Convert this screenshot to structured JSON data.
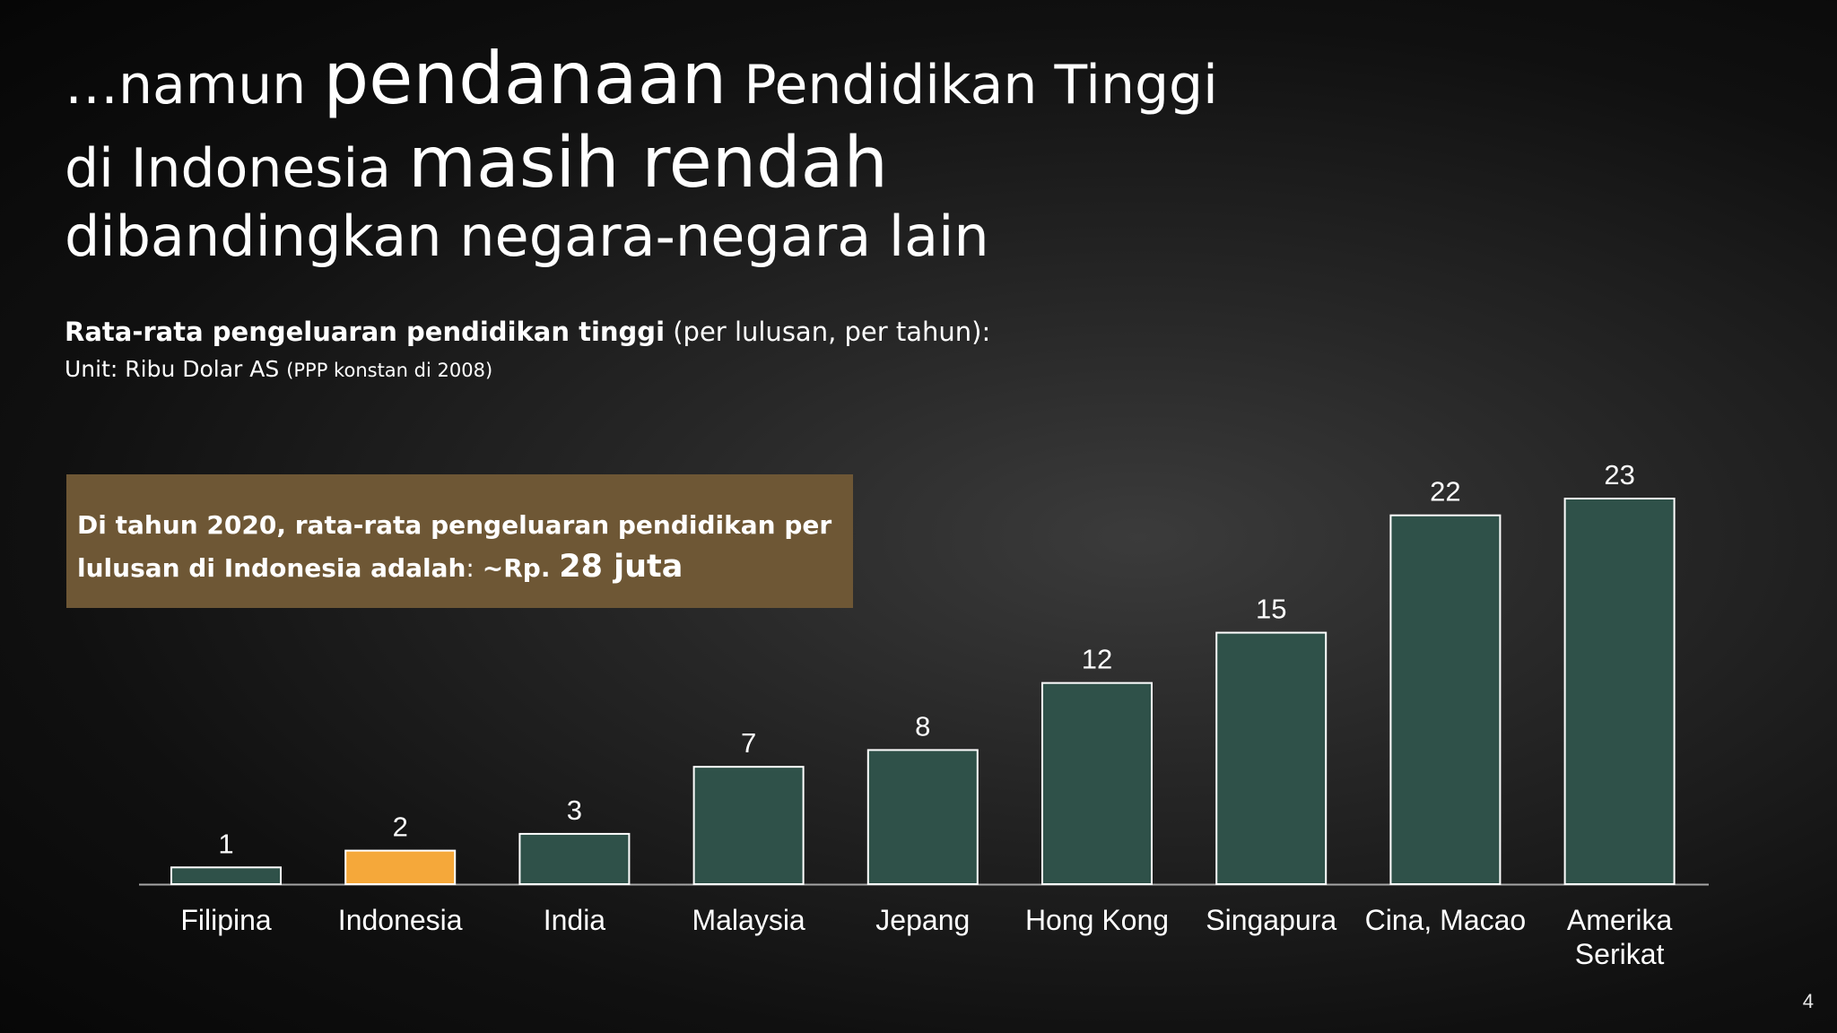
{
  "slide": {
    "title": {
      "l1a": "…namun ",
      "l1b": "pendanaan",
      "l1c": " Pendidikan Tinggi",
      "l2a": "di Indonesia ",
      "l2b": "masih rendah",
      "l3": "dibandingkan negara-negara lain"
    },
    "subtitle": {
      "bold": "Rata-rata pengeluaran pendidikan tinggi",
      "rest": " (per lulusan, per tahun):"
    },
    "unit": {
      "main": "Unit: Ribu Dolar AS ",
      "small": "(PPP konstan di 2008)"
    },
    "callout": {
      "p1": "Di tahun 2020",
      "p2": ", rata-rata pengeluaran pendidikan per lulusan di Indonesia adalah",
      "p3": ": ",
      "p4": "~Rp. ",
      "p5": "28 juta"
    },
    "page_number": "4",
    "colors": {
      "bar": "#2f5149",
      "highlight": "#f5a83a",
      "callout_bg": "#6e5735",
      "axis": "#a6a6a6"
    }
  },
  "chart_data": {
    "type": "bar",
    "categories": [
      "Filipina",
      "Indonesia",
      "India",
      "Malaysia",
      "Jepang",
      "Hong Kong",
      "Singapura",
      "Cina, Macao",
      "Amerika Serikat"
    ],
    "category_lines": [
      [
        "Filipina"
      ],
      [
        "Indonesia"
      ],
      [
        "India"
      ],
      [
        "Malaysia"
      ],
      [
        "Jepang"
      ],
      [
        "Hong Kong"
      ],
      [
        "Singapura"
      ],
      [
        "Cina, Macao"
      ],
      [
        "Amerika",
        "Serikat"
      ]
    ],
    "values": [
      1,
      2,
      3,
      7,
      8,
      12,
      15,
      22,
      23
    ],
    "highlight_index": 1,
    "data_labels": true,
    "title": "",
    "xlabel": "",
    "ylabel": "",
    "ylim": [
      0,
      23
    ],
    "grid": false,
    "legend": "none"
  }
}
